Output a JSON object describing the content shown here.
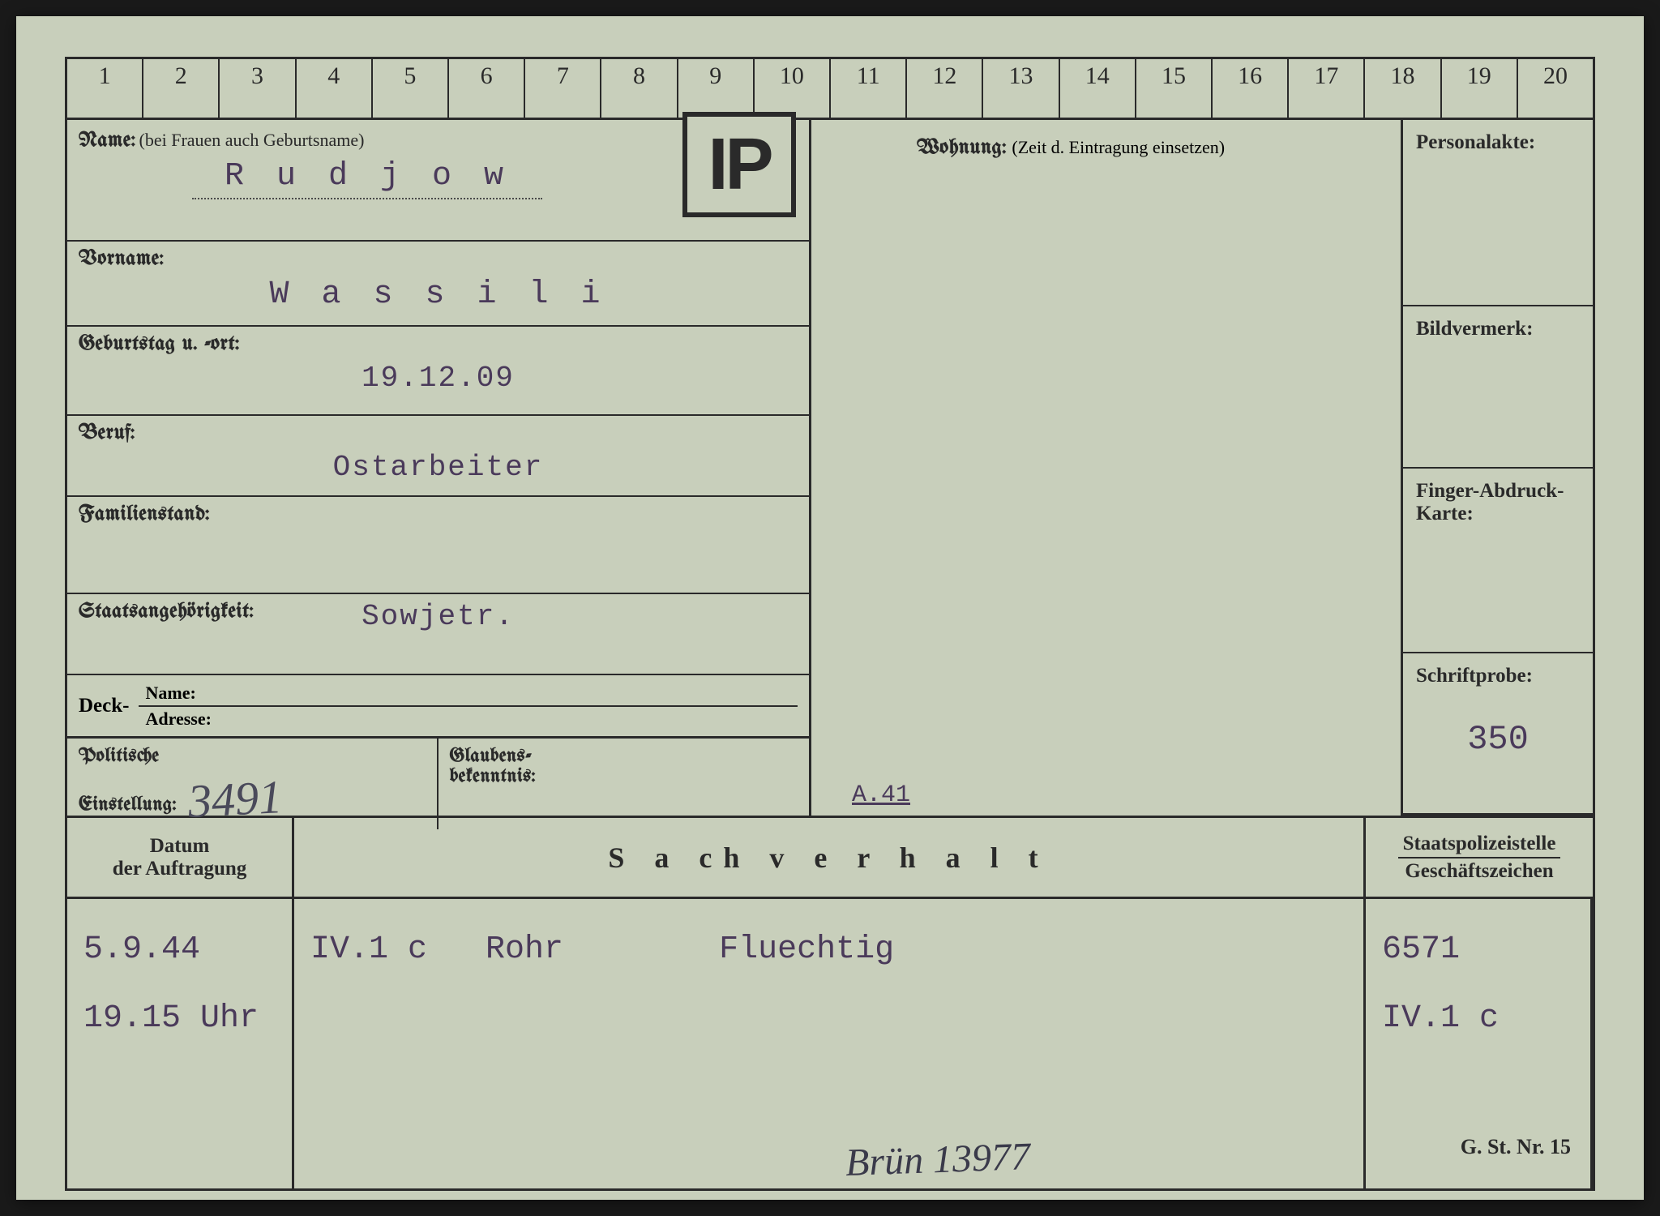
{
  "ruler": [
    "1",
    "2",
    "3",
    "4",
    "5",
    "6",
    "7",
    "8",
    "9",
    "10",
    "11",
    "12",
    "13",
    "14",
    "15",
    "16",
    "17",
    "18",
    "19",
    "20"
  ],
  "ip_stamp": "IP",
  "left": {
    "name_label": "Name:",
    "name_sublabel": "(bei Frauen auch Geburtsname)",
    "name_value": "R u d j o w",
    "vorname_label": "Vorname:",
    "vorname_value": "W a s s i l i",
    "birth_label": "Geburtstag u. -ort:",
    "birth_value": "19.12.09",
    "beruf_label": "Beruf:",
    "beruf_value": "Ostarbeiter",
    "family_label": "Familienstand:",
    "family_value": "",
    "nation_label": "Staatsangehörigkeit:",
    "nation_value": "Sowjetr.",
    "deck_label": "Deck-",
    "deck_name": "Name:",
    "deck_addr": "Adresse:",
    "polit_label": "Politische",
    "polit_label2": "Einstellung:",
    "polit_value": "3491",
    "glauben_label": "Glaubens-",
    "glauben_label2": "bekenntnis:"
  },
  "mid": {
    "wohnung_label": "Wohnung:",
    "wohnung_sub": "(Zeit d. Eintragung einsetzen)",
    "note": "A.41"
  },
  "right": {
    "personal": "Personalakte:",
    "bild": "Bildvermerk:",
    "finger": "Finger-Abdruck-",
    "finger2": "Karte:",
    "schrift": "Schriftprobe:",
    "schrift_value": "350"
  },
  "header": {
    "datum1": "Datum",
    "datum2": "der Auftragung",
    "sachverhalt": "S a ch v e r h a l t",
    "staats1": "Staatspolizeistelle",
    "staats2": "Geschäftszeichen"
  },
  "entries": {
    "date1": "5.9.44",
    "date2": "19.15 Uhr",
    "mid1": "IV.1 c   Rohr        Fluechtig",
    "ref1": "6571",
    "ref2": "IV.1 c"
  },
  "handwritten": "Brün 13977",
  "footer": "G. St. Nr. 15",
  "colors": {
    "card_bg": "#c8cfbb",
    "ink": "#2a2a2a",
    "typed": "#4a3a5a"
  }
}
